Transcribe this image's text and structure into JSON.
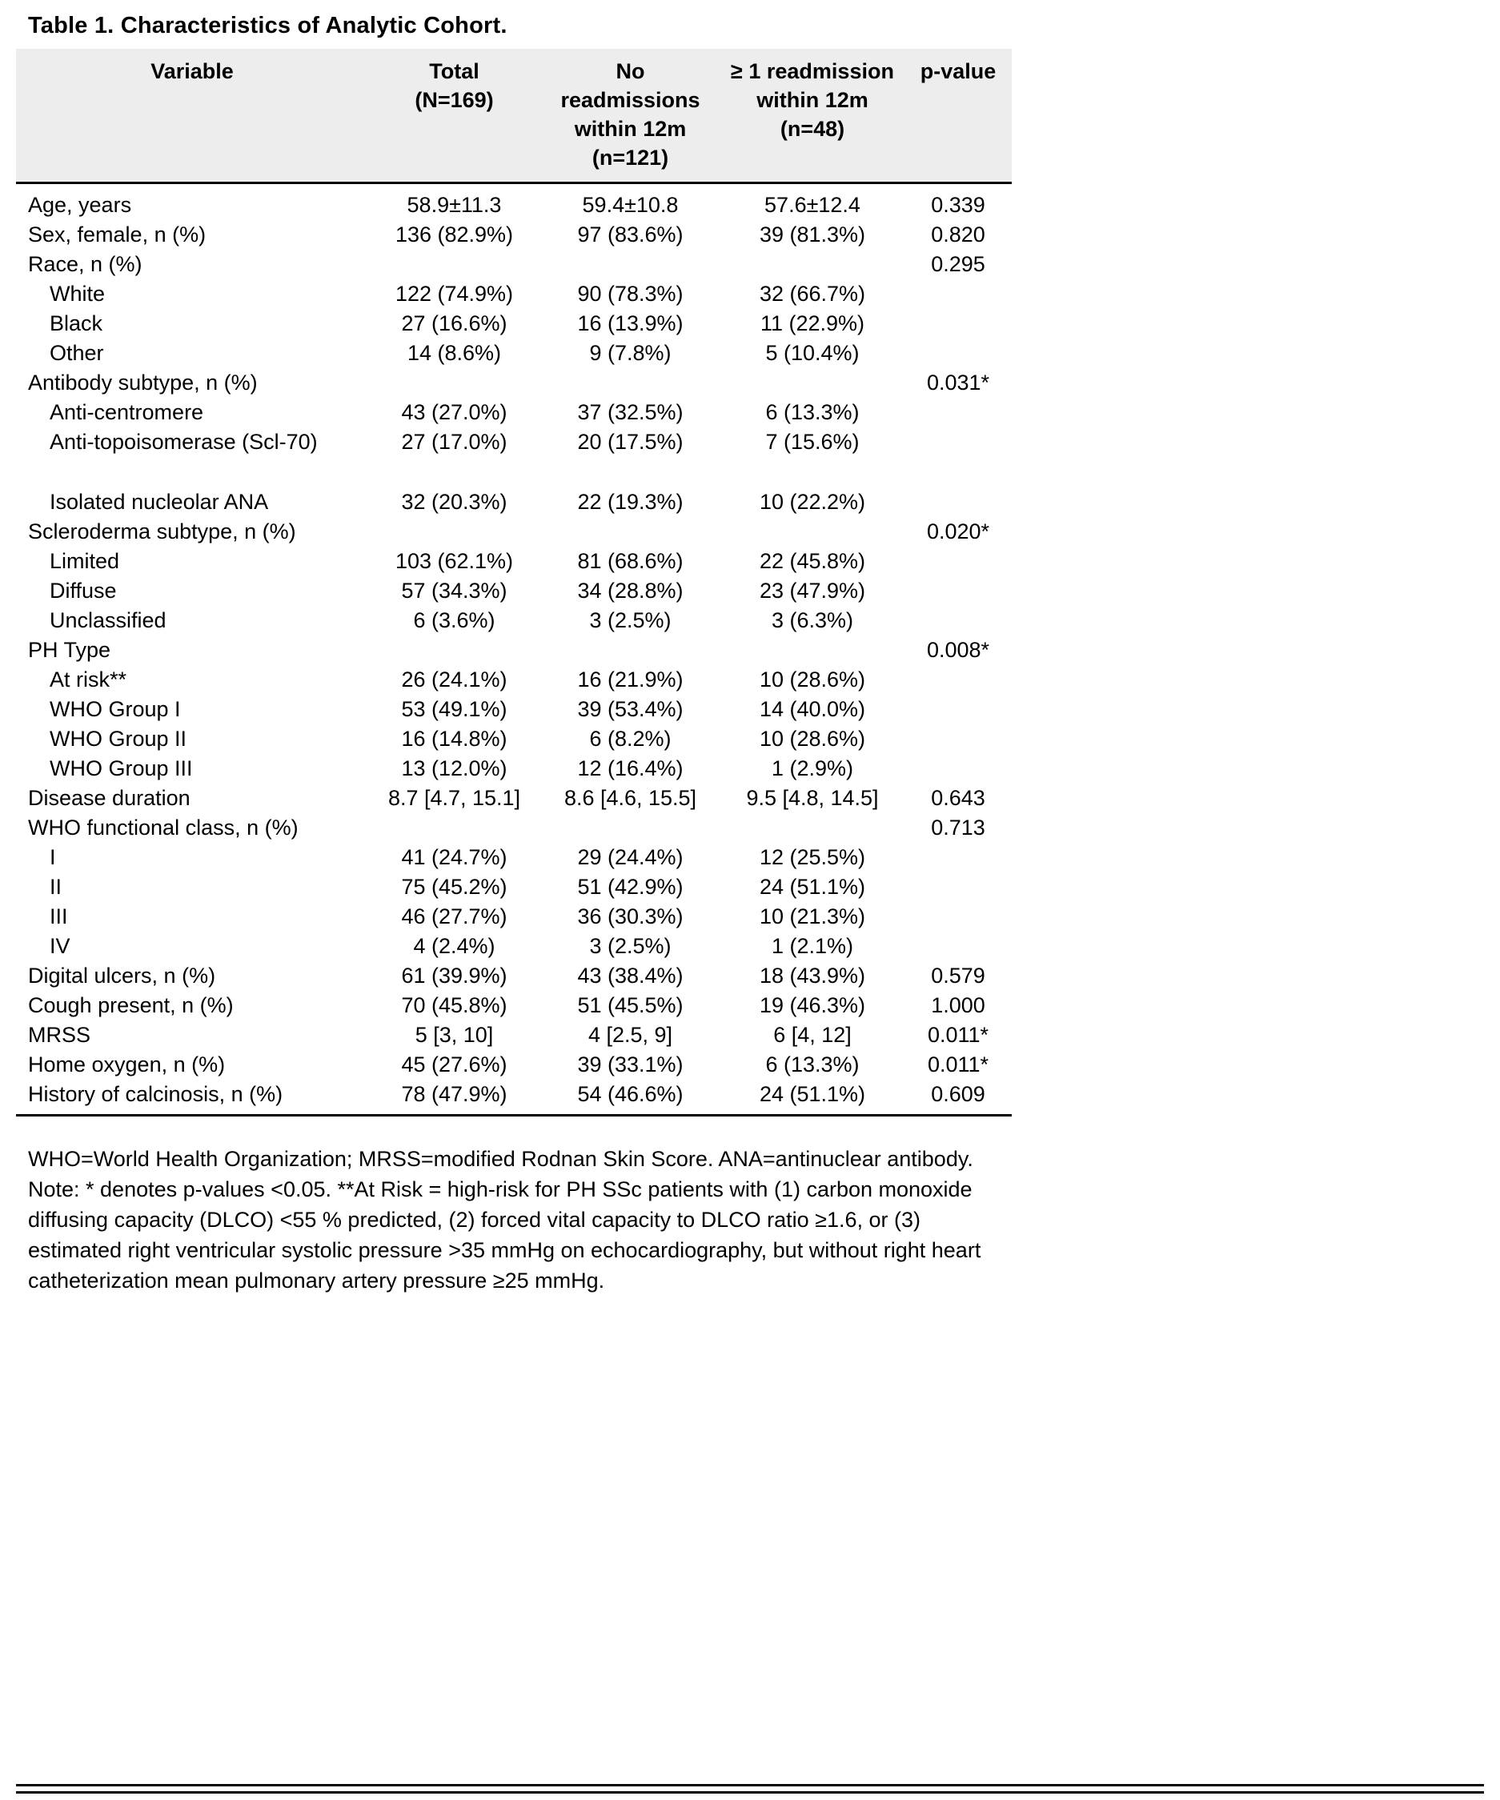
{
  "title": "Table 1. Characteristics of Analytic Cohort.",
  "colors": {
    "header_background": "#ededed",
    "text": "#000000",
    "rule": "#000000"
  },
  "table": {
    "headers": [
      "Variable",
      "Total\n(N=169)",
      "No\nreadmissions\nwithin 12m\n(n=121)",
      "≥ 1 readmission\nwithin 12m\n(n=48)",
      "p-value"
    ],
    "rows": [
      {
        "variable": "Age, years",
        "indent": false,
        "blank": false,
        "total": "58.9±11.3",
        "no_readmissions": "59.4±10.8",
        "readmissions": "57.6±12.4",
        "p_value": "0.339"
      },
      {
        "variable": "Sex, female, n (%)",
        "indent": false,
        "blank": false,
        "total": "136 (82.9%)",
        "no_readmissions": "97 (83.6%)",
        "readmissions": "39 (81.3%)",
        "p_value": "0.820"
      },
      {
        "variable": "Race, n (%)",
        "indent": false,
        "blank": false,
        "total": "",
        "no_readmissions": "",
        "readmissions": "",
        "p_value": "0.295"
      },
      {
        "variable": "White",
        "indent": true,
        "blank": false,
        "total": "122 (74.9%)",
        "no_readmissions": "90 (78.3%)",
        "readmissions": "32 (66.7%)",
        "p_value": ""
      },
      {
        "variable": "Black",
        "indent": true,
        "blank": false,
        "total": "27 (16.6%)",
        "no_readmissions": "16 (13.9%)",
        "readmissions": "11 (22.9%)",
        "p_value": ""
      },
      {
        "variable": "Other",
        "indent": true,
        "blank": false,
        "total": "14 (8.6%)",
        "no_readmissions": "9 (7.8%)",
        "readmissions": "5 (10.4%)",
        "p_value": ""
      },
      {
        "variable": "Antibody subtype, n (%)",
        "indent": false,
        "blank": false,
        "total": "",
        "no_readmissions": "",
        "readmissions": "",
        "p_value": "0.031*"
      },
      {
        "variable": "Anti-centromere",
        "indent": true,
        "blank": false,
        "total": "43 (27.0%)",
        "no_readmissions": "37 (32.5%)",
        "readmissions": "6 (13.3%)",
        "p_value": ""
      },
      {
        "variable": "Anti-topoisomerase (Scl-70)",
        "indent": true,
        "blank": false,
        "total": "27 (17.0%)",
        "no_readmissions": "20 (17.5%)",
        "readmissions": "7 (15.6%)",
        "p_value": ""
      },
      {
        "variable": "",
        "indent": false,
        "blank": true,
        "total": "",
        "no_readmissions": "",
        "readmissions": "",
        "p_value": ""
      },
      {
        "variable": "Isolated nucleolar ANA",
        "indent": true,
        "blank": false,
        "total": "32 (20.3%)",
        "no_readmissions": "22 (19.3%)",
        "readmissions": "10 (22.2%)",
        "p_value": ""
      },
      {
        "variable": "Scleroderma subtype, n (%)",
        "indent": false,
        "blank": false,
        "total": "",
        "no_readmissions": "",
        "readmissions": "",
        "p_value": "0.020*"
      },
      {
        "variable": "Limited",
        "indent": true,
        "blank": false,
        "total": "103 (62.1%)",
        "no_readmissions": "81 (68.6%)",
        "readmissions": "22 (45.8%)",
        "p_value": ""
      },
      {
        "variable": "Diffuse",
        "indent": true,
        "blank": false,
        "total": "57 (34.3%)",
        "no_readmissions": "34 (28.8%)",
        "readmissions": "23 (47.9%)",
        "p_value": ""
      },
      {
        "variable": "Unclassified",
        "indent": true,
        "blank": false,
        "total": "6 (3.6%)",
        "no_readmissions": "3 (2.5%)",
        "readmissions": "3 (6.3%)",
        "p_value": ""
      },
      {
        "variable": "PH Type",
        "indent": false,
        "blank": false,
        "total": "",
        "no_readmissions": "",
        "readmissions": "",
        "p_value": "0.008*"
      },
      {
        "variable": "At risk**",
        "indent": true,
        "blank": false,
        "total": "26 (24.1%)",
        "no_readmissions": "16 (21.9%)",
        "readmissions": "10 (28.6%)",
        "p_value": ""
      },
      {
        "variable": "WHO Group I",
        "indent": true,
        "blank": false,
        "total": "53 (49.1%)",
        "no_readmissions": "39 (53.4%)",
        "readmissions": "14 (40.0%)",
        "p_value": ""
      },
      {
        "variable": "WHO Group II",
        "indent": true,
        "blank": false,
        "total": "16 (14.8%)",
        "no_readmissions": "6 (8.2%)",
        "readmissions": "10 (28.6%)",
        "p_value": ""
      },
      {
        "variable": "WHO Group III",
        "indent": true,
        "blank": false,
        "total": "13 (12.0%)",
        "no_readmissions": "12 (16.4%)",
        "readmissions": "1 (2.9%)",
        "p_value": ""
      },
      {
        "variable": "Disease duration",
        "indent": false,
        "blank": false,
        "total": "8.7 [4.7, 15.1]",
        "no_readmissions": "8.6 [4.6, 15.5]",
        "readmissions": "9.5 [4.8, 14.5]",
        "p_value": "0.643"
      },
      {
        "variable": "WHO functional class, n (%)",
        "indent": false,
        "blank": false,
        "total": "",
        "no_readmissions": "",
        "readmissions": "",
        "p_value": "0.713"
      },
      {
        "variable": "I",
        "indent": true,
        "blank": false,
        "total": "41 (24.7%)",
        "no_readmissions": "29 (24.4%)",
        "readmissions": "12 (25.5%)",
        "p_value": ""
      },
      {
        "variable": "II",
        "indent": true,
        "blank": false,
        "total": "75 (45.2%)",
        "no_readmissions": "51 (42.9%)",
        "readmissions": "24 (51.1%)",
        "p_value": ""
      },
      {
        "variable": "III",
        "indent": true,
        "blank": false,
        "total": "46 (27.7%)",
        "no_readmissions": "36 (30.3%)",
        "readmissions": "10 (21.3%)",
        "p_value": ""
      },
      {
        "variable": "IV",
        "indent": true,
        "blank": false,
        "total": "4 (2.4%)",
        "no_readmissions": "3 (2.5%)",
        "readmissions": "1 (2.1%)",
        "p_value": ""
      },
      {
        "variable": "Digital ulcers, n (%)",
        "indent": false,
        "blank": false,
        "total": "61 (39.9%)",
        "no_readmissions": "43 (38.4%)",
        "readmissions": "18 (43.9%)",
        "p_value": "0.579"
      },
      {
        "variable": "Cough present, n (%)",
        "indent": false,
        "blank": false,
        "total": "70 (45.8%)",
        "no_readmissions": "51 (45.5%)",
        "readmissions": "19 (46.3%)",
        "p_value": "1.000"
      },
      {
        "variable": "MRSS",
        "indent": false,
        "blank": false,
        "total": "5 [3, 10]",
        "no_readmissions": "4 [2.5, 9]",
        "readmissions": "6 [4, 12]",
        "p_value": "0.011*"
      },
      {
        "variable": "Home oxygen, n (%)",
        "indent": false,
        "blank": false,
        "total": "45 (27.6%)",
        "no_readmissions": "39 (33.1%)",
        "readmissions": "6 (13.3%)",
        "p_value": "0.011*"
      },
      {
        "variable": "History of calcinosis, n (%)",
        "indent": false,
        "blank": false,
        "total": "78 (47.9%)",
        "no_readmissions": "54 (46.6%)",
        "readmissions": "24 (51.1%)",
        "p_value": "0.609"
      }
    ]
  },
  "footnotes": [
    "WHO=World Health Organization; MRSS=modified Rodnan Skin Score. ANA=antinuclear antibody.",
    "Note: * denotes p-values <0.05. **At Risk = high-risk for PH SSc patients with (1) carbon monoxide diffusing capacity (DLCO) <55 % predicted, (2) forced vital capacity to DLCO ratio ≥1.6, or (3) estimated right ventricular systolic pressure >35 mmHg on echocardiography, but without right heart catheterization mean pulmonary artery pressure ≥25 mmHg."
  ]
}
